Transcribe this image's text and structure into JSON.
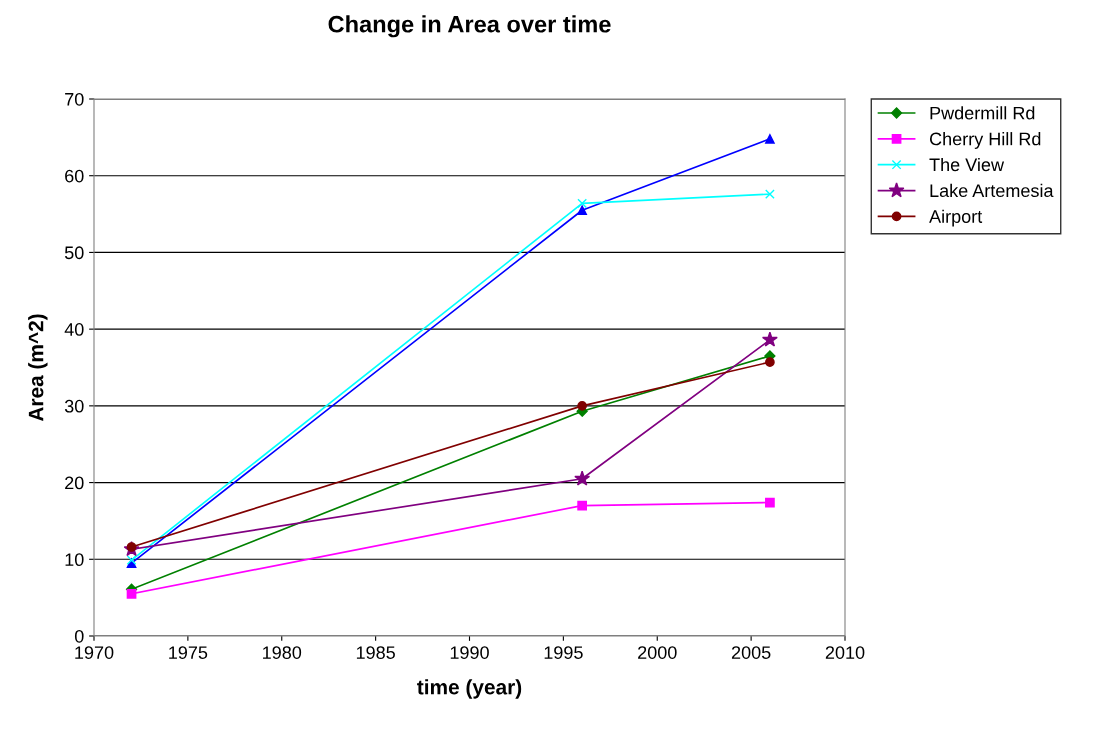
{
  "chart_data": {
    "type": "line",
    "title": "Change in Area over time",
    "xlabel": "time (year)",
    "ylabel": "Area (m^2)",
    "x": [
      1972,
      1996,
      2006
    ],
    "series": [
      {
        "name": "Pwdermill Rd",
        "color": "#008000",
        "marker": "diamond",
        "values": [
          6.1,
          29.3,
          36.5
        ]
      },
      {
        "name": "Cherry Hill Rd",
        "color": "#ff00ff",
        "marker": "square",
        "values": [
          5.5,
          17.0,
          17.4
        ]
      },
      {
        "color": "#0000ff",
        "marker": "triangle",
        "values": [
          9.5,
          55.5,
          64.8
        ]
      },
      {
        "name": "The View",
        "color": "#00ffff",
        "marker": "cross",
        "values": [
          9.9,
          56.4,
          57.6
        ]
      },
      {
        "name": "Lake Artemesia",
        "color": "#800080",
        "marker": "star",
        "values": [
          11.3,
          20.5,
          38.6
        ]
      },
      {
        "name": "Airport",
        "color": "#800000",
        "marker": "circle",
        "values": [
          11.6,
          30.0,
          35.7
        ]
      }
    ],
    "xlim": [
      1970,
      2010
    ],
    "xticks": [
      1970,
      1975,
      1980,
      1985,
      1990,
      1995,
      2000,
      2005,
      2010
    ],
    "ylim": [
      0,
      70
    ],
    "yticks": [
      0,
      10,
      20,
      30,
      40,
      50,
      60,
      70
    ],
    "grid": "y",
    "legend": "top right",
    "line_style": "solid"
  }
}
